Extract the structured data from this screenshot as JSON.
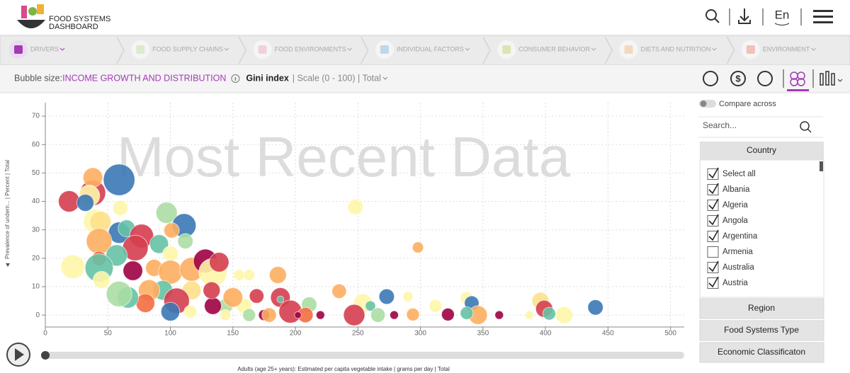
{
  "header": {
    "logo_line1": "FOOD SYSTEMS",
    "logo_line2": "DASHBOARD",
    "language": "En"
  },
  "nav": {
    "tabs": [
      "DRIVERS",
      "FOOD SUPPLY CHAINS",
      "FOOD ENVIRONMENTS",
      "INDIVIDUAL FACTORS",
      "CONSUMER BEHAVIOR",
      "DIETS AND NUTRITION",
      "ENVIRONMENT"
    ],
    "active": 0
  },
  "toolbar": {
    "bubble_label": "Bubble size:",
    "bubble_topic": "INCOME GROWTH AND DISTRIBUTION",
    "indicator": "Gini index",
    "details": "| Scale (0 - 100) | Total"
  },
  "chart_data": {
    "type": "bubble",
    "watermark": "Most Recent Data",
    "y_label": "Prevalence of undern... | Percent | Total",
    "x_label": "Adults (age 25+ years): Estimated per capita vegetable intake | grams per day | Total",
    "xlim": [
      0,
      511
    ],
    "ylim": [
      -4.2,
      76
    ],
    "xticks": [
      0,
      50,
      100,
      150,
      200,
      250,
      300,
      350,
      400,
      450,
      500
    ],
    "yticks": [
      0,
      10,
      20,
      30,
      40,
      50,
      60,
      70
    ],
    "grid": true,
    "x": [
      59,
      38,
      38,
      35,
      19,
      32,
      60,
      97,
      111,
      40,
      44,
      59,
      65,
      77,
      101,
      112,
      91,
      100,
      43,
      72,
      57,
      43,
      22,
      43,
      70,
      87,
      100,
      117,
      128,
      134,
      139,
      155,
      163,
      186,
      235,
      248,
      298,
      273,
      254,
      290,
      337,
      341,
      346,
      247,
      260,
      266,
      279,
      294,
      312,
      322,
      337,
      363,
      396,
      399,
      403,
      415,
      387,
      440,
      188,
      196,
      211,
      208,
      220,
      169,
      159,
      175,
      163,
      179,
      144,
      134,
      133,
      150,
      144,
      117,
      94,
      83,
      105,
      100,
      80,
      66,
      59,
      45,
      116,
      188,
      202
    ],
    "y": [
      47.6,
      43,
      48.4,
      42,
      40,
      39.5,
      37.7,
      36,
      31.5,
      33,
      32.8,
      29,
      30.5,
      27.8,
      29.8,
      26,
      25,
      21.6,
      26,
      23.6,
      21,
      19.9,
      17,
      16.6,
      15.6,
      16.6,
      15.1,
      16.1,
      19,
      15,
      18.6,
      14.1,
      14.1,
      14.1,
      8.4,
      38,
      23.8,
      6.5,
      4.2,
      6.5,
      6,
      4.2,
      0,
      0,
      3.2,
      0,
      0,
      0.2,
      3.2,
      0.2,
      0.7,
      0,
      5,
      2.2,
      0.5,
      0,
      0,
      2.7,
      6.2,
      1.2,
      3.7,
      0,
      0,
      6.7,
      3.2,
      0,
      0,
      0,
      3.2,
      3.2,
      8.7,
      6.2,
      0,
      8.7,
      8.7,
      8.7,
      5,
      1.2,
      4.2,
      6.2,
      7.4,
      12.4,
      1.2,
      5.5,
      0
    ],
    "sizes": [
      57,
      50,
      43,
      45,
      45,
      40,
      38,
      45,
      48,
      48,
      45,
      45,
      40,
      48,
      38,
      38,
      42,
      38,
      50,
      50,
      45,
      37,
      48,
      53,
      43,
      40,
      48,
      48,
      48,
      53,
      43,
      33,
      33,
      40,
      37,
      38,
      33,
      38,
      42,
      32,
      35,
      37,
      42,
      45,
      32,
      37,
      30,
      35,
      35,
      35,
      35,
      30,
      40,
      40,
      35,
      40,
      30,
      38,
      43,
      47,
      38,
      38,
      30,
      37,
      38,
      33,
      35,
      37,
      37,
      40,
      40,
      43,
      33,
      42,
      43,
      45,
      50,
      42,
      42,
      45,
      50,
      40,
      35,
      28,
      28
    ],
    "colors": [
      "#3a78b5",
      "#d53e4f",
      "#fdae61",
      "#fef6a8",
      "#d53e4f",
      "#3a78b5",
      "#fef6a8",
      "#abdda4",
      "#3a78b5",
      "#fef6a8",
      "#fee08b",
      "#3a78b5",
      "#66c2a5",
      "#d53e4f",
      "#fdae61",
      "#abdda4",
      "#66c2a5",
      "#fef6a8",
      "#fdae61",
      "#d53e4f",
      "#66c2a5",
      "#f46d43",
      "#fef6a8",
      "#66c2a5",
      "#9e0142",
      "#fdae61",
      "#fdae61",
      "#fdae61",
      "#9e0142",
      "#fef6a8",
      "#d53e4f",
      "#fef6a8",
      "#fef6a8",
      "#fdae61",
      "#fdae61",
      "#fef6a8",
      "#fdae61",
      "#3a78b5",
      "#fef6a8",
      "#fef6a8",
      "#fef6a8",
      "#3a78b5",
      "#fdae61",
      "#d53e4f",
      "#66c2a5",
      "#abdda4",
      "#9e0142",
      "#fdae61",
      "#fef6a8",
      "#9e0142",
      "#66c2a5",
      "#9e0142",
      "#fee08b",
      "#d53e4f",
      "#66c2a5",
      "#fef6a8",
      "#fef6a8",
      "#3a78b5",
      "#d53e4f",
      "#d53e4f",
      "#abdda4",
      "#f46d43",
      "#9e0142",
      "#d53e4f",
      "#fef6a8",
      "#9e0142",
      "#abdda4",
      "#fdae61",
      "#abdda4",
      "#9e0142",
      "#d53e4f",
      "#fdae61",
      "#fef6a8",
      "#fee08b",
      "#66c2a5",
      "#fdae61",
      "#d53e4f",
      "#3a78b5",
      "#f46d43",
      "#66c2a5",
      "#abdda4",
      "#fef6a8",
      "#fef6a8",
      "#66c2a5",
      "#9e0142"
    ]
  },
  "sidebar": {
    "compare": "Compare across",
    "search": "Search...",
    "country_header": "Country",
    "items": [
      {
        "label": "Select all",
        "checked": true
      },
      {
        "label": "Albania",
        "checked": true
      },
      {
        "label": "Algeria",
        "checked": true
      },
      {
        "label": "Angola",
        "checked": true
      },
      {
        "label": "Argentina",
        "checked": true
      },
      {
        "label": "Armenia",
        "checked": false
      },
      {
        "label": "Australia",
        "checked": true
      },
      {
        "label": "Austria",
        "checked": true
      }
    ],
    "buttons": [
      "Region",
      "Food Systems Type",
      "Economic Classificaton"
    ]
  }
}
